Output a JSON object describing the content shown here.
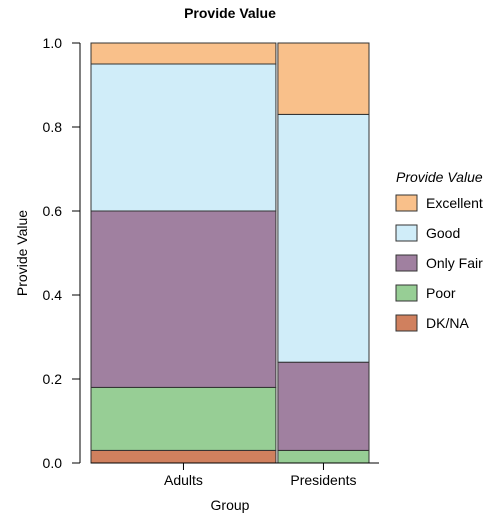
{
  "chart_data": {
    "type": "mosaic",
    "title": "Provide Value",
    "xlabel": "Group",
    "ylabel": "Provide Value",
    "ylim": [
      0,
      1
    ],
    "yticks": [
      "0.0",
      "0.2",
      "0.4",
      "0.6",
      "0.8",
      "1.0"
    ],
    "legend_title": "Provide Value",
    "legend_position": "right",
    "categories": [
      "Adults",
      "Presidents"
    ],
    "column_widths": [
      0.67,
      0.33
    ],
    "series": [
      {
        "name": "DK/NA",
        "color": "#D0805E",
        "values": [
          0.03,
          0.0
        ]
      },
      {
        "name": "Poor",
        "color": "#97CE95",
        "values": [
          0.15,
          0.03
        ]
      },
      {
        "name": "Only Fair",
        "color": "#A080A0",
        "values": [
          0.42,
          0.21
        ]
      },
      {
        "name": "Good",
        "color": "#D0EDF9",
        "values": [
          0.35,
          0.59
        ]
      },
      {
        "name": "Excellent",
        "color": "#F9C08A",
        "values": [
          0.05,
          0.17
        ]
      }
    ],
    "legend_order": [
      "Excellent",
      "Good",
      "Only Fair",
      "Poor",
      "DK/NA"
    ]
  }
}
